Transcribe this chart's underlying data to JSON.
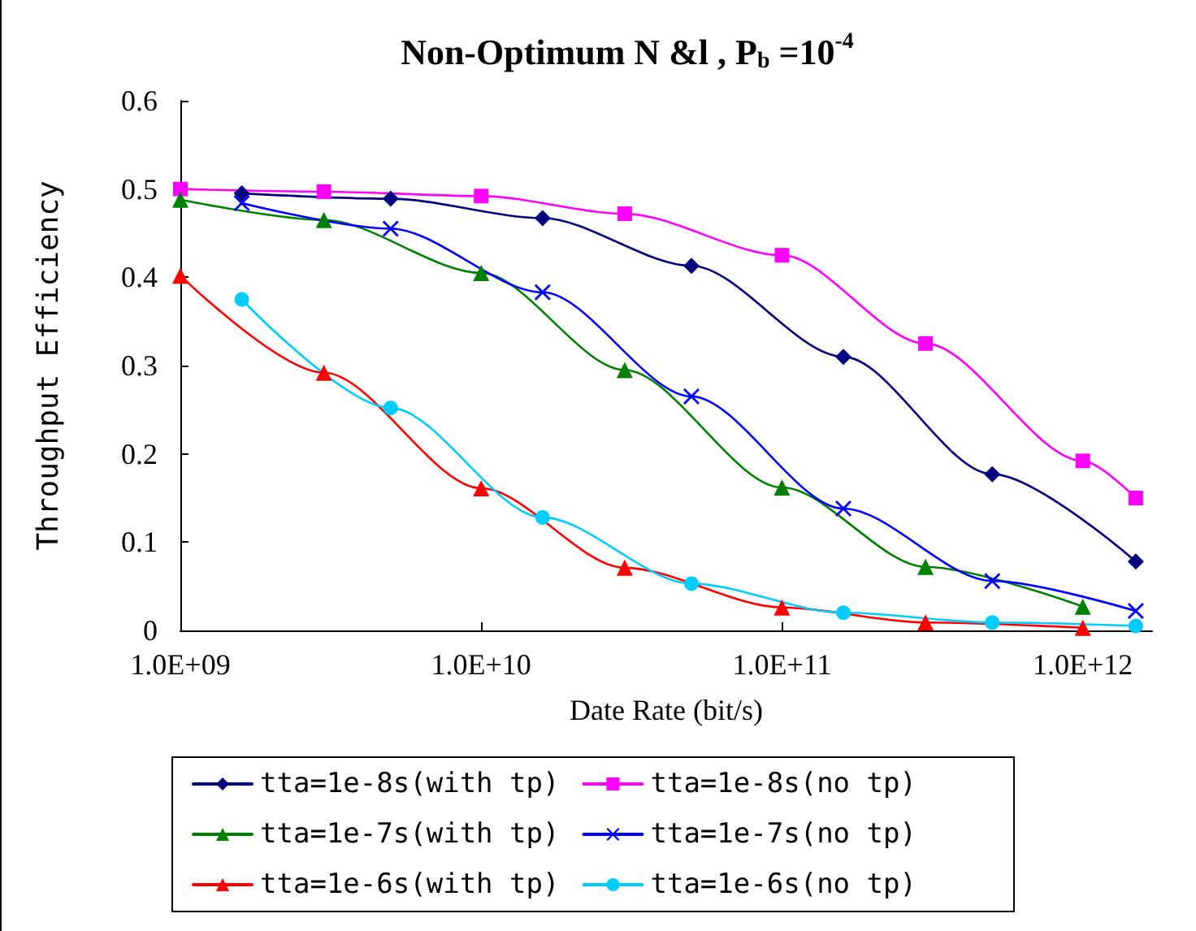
{
  "chart_data": {
    "type": "line",
    "title": "Non-Optimum N &l , P$_{b}$ =10$^{-4}$",
    "xlabel": "Date Rate (bit/s)",
    "ylabel": "Throughput Efficiency",
    "log": "x",
    "xlim": [
      1000000000,
      1700000000000
    ],
    "xticks": [
      {
        "value": 1000000000,
        "label": "1.0E+09"
      },
      {
        "value": 10000000000,
        "label": "1.0E+10"
      },
      {
        "value": 100000000000,
        "label": "1.0E+11"
      },
      {
        "value": 1000000000000,
        "label": "1.0E+12"
      }
    ],
    "ylim": [
      0,
      0.6
    ],
    "yticks": [
      0,
      0.1,
      0.2,
      0.3,
      0.4,
      0.5,
      0.6
    ],
    "grid": false,
    "legend": "bottom",
    "series": [
      {
        "name": "tta=1e-8s(with tp)",
        "color": "#000080",
        "marker": "diamond",
        "x": [
          1600000000,
          5000000000,
          16000000000,
          50000000000,
          160000000000,
          500000000000,
          1500000000000
        ],
        "values": [
          0.495,
          0.489,
          0.467,
          0.413,
          0.31,
          0.177,
          0.078
        ]
      },
      {
        "name": "tta=1e-8s(no tp)",
        "color": "#ff00ff",
        "marker": "square",
        "x": [
          1000000000,
          3000000000,
          10000000000,
          30000000000,
          100000000000,
          300000000000,
          1000000000000,
          1500000000000
        ],
        "values": [
          0.5,
          0.497,
          0.492,
          0.472,
          0.425,
          0.325,
          0.192,
          0.15
        ]
      },
      {
        "name": "tta=1e-7s(with tp)",
        "color": "#008000",
        "marker": "triangle",
        "x": [
          1000000000,
          3000000000,
          10000000000,
          30000000000,
          100000000000,
          300000000000,
          1000000000000
        ],
        "values": [
          0.488,
          0.465,
          0.405,
          0.295,
          0.162,
          0.072,
          0.027
        ]
      },
      {
        "name": "tta=1e-7s(no tp)",
        "color": "#0000ff",
        "marker": "cross",
        "x": [
          1600000000,
          5000000000,
          16000000000,
          50000000000,
          160000000000,
          500000000000,
          1500000000000
        ],
        "values": [
          0.484,
          0.455,
          0.383,
          0.265,
          0.138,
          0.056,
          0.022
        ]
      },
      {
        "name": "tta=1e-6s(with tp)",
        "color": "#ff0000",
        "marker": "triangle",
        "x": [
          1000000000,
          3000000000,
          10000000000,
          30000000000,
          100000000000,
          300000000000,
          1000000000000
        ],
        "values": [
          0.402,
          0.292,
          0.161,
          0.071,
          0.026,
          0.009,
          0.003
        ]
      },
      {
        "name": "tta=1e-6s(no tp)",
        "color": "#00ccff",
        "marker": "circle",
        "x": [
          1600000000,
          5000000000,
          16000000000,
          50000000000,
          160000000000,
          500000000000,
          1500000000000
        ],
        "values": [
          0.375,
          0.252,
          0.128,
          0.053,
          0.02,
          0.009,
          0.005
        ]
      }
    ]
  }
}
